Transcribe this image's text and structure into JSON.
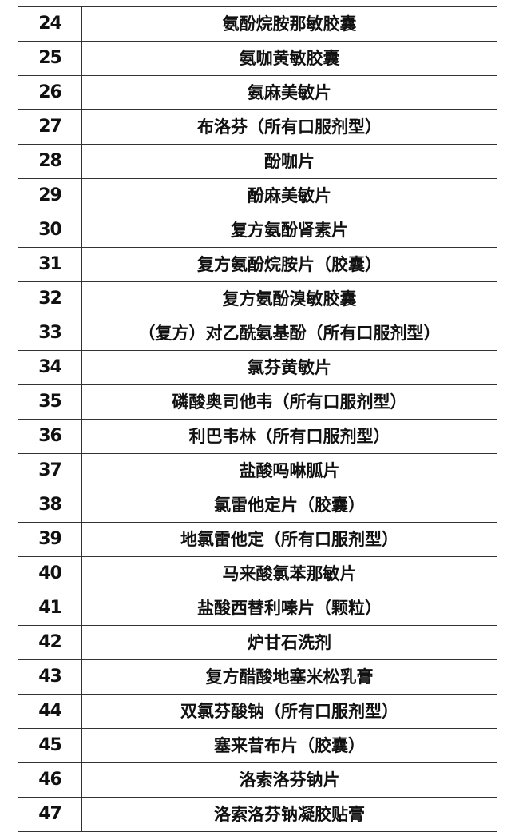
{
  "rows": [
    {
      "no": "24",
      "name": "氨酚烷胺那敏胶囊"
    },
    {
      "no": "25",
      "name": "氨咖黄敏胶囊"
    },
    {
      "no": "26",
      "name": "氨麻美敏片"
    },
    {
      "no": "27",
      "name": "布洛芬（所有口服剂型）"
    },
    {
      "no": "28",
      "name": "酚咖片"
    },
    {
      "no": "29",
      "name": "酚麻美敏片"
    },
    {
      "no": "30",
      "name": "复方氨酚肾素片"
    },
    {
      "no": "31",
      "name": "复方氨酚烷胺片（胶囊）"
    },
    {
      "no": "32",
      "name": "复方氨酚溴敏胶囊"
    },
    {
      "no": "33",
      "name": "（复方）对乙酰氨基酚（所有口服剂型）"
    },
    {
      "no": "34",
      "name": "氯芬黄敏片"
    },
    {
      "no": "35",
      "name": "磷酸奥司他韦（所有口服剂型）"
    },
    {
      "no": "36",
      "name": "利巴韦林（所有口服剂型）"
    },
    {
      "no": "37",
      "name": "盐酸吗啉胍片"
    },
    {
      "no": "38",
      "name": "氯雷他定片（胶囊）"
    },
    {
      "no": "39",
      "name": "地氯雷他定（所有口服剂型）"
    },
    {
      "no": "40",
      "name": "马来酸氯苯那敏片"
    },
    {
      "no": "41",
      "name": "盐酸西替利嗪片（颗粒）"
    },
    {
      "no": "42",
      "name": "炉甘石洗剂"
    },
    {
      "no": "43",
      "name": "复方醋酸地塞米松乳膏"
    },
    {
      "no": "44",
      "name": "双氯芬酸钠（所有口服剂型）"
    },
    {
      "no": "45",
      "name": "塞来昔布片（胶囊）"
    },
    {
      "no": "46",
      "name": "洛索洛芬钠片"
    },
    {
      "no": "47",
      "name": "洛索洛芬钠凝胶贴膏"
    }
  ]
}
